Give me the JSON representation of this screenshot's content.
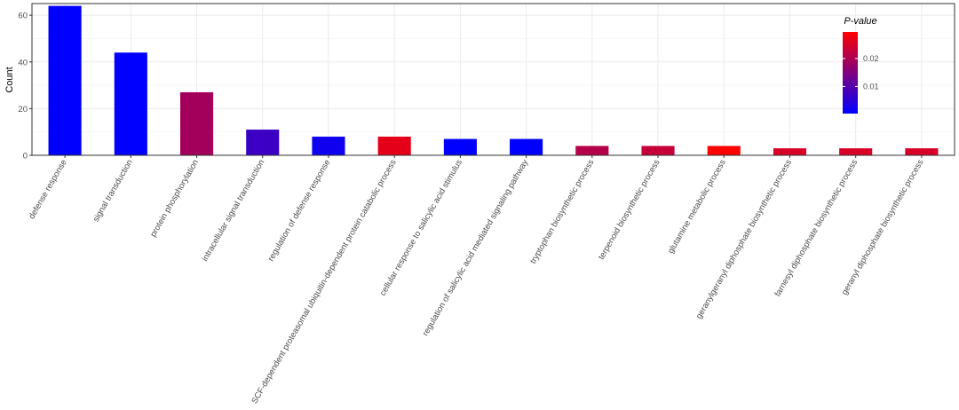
{
  "chart_data": {
    "type": "bar",
    "title": "",
    "xlabel": "",
    "ylabel": "Count",
    "ylim": [
      0,
      65
    ],
    "yticks": [
      0,
      20,
      40,
      60
    ],
    "grid": true,
    "categories": [
      "defense response",
      "signal transduction",
      "protein phosphorylation",
      "intracellular signal transduction",
      "regulation of defense response",
      "SCF-dependent proteasomal ubiquitin-dependent protein catabolic process",
      "cellular response to salicylic acid stimulus",
      "regulation of salicylic acid mediated signaling pathway",
      "tryptophan biosynthetic process",
      "terpenoid biosynthetic process",
      "glutamine metabolic process",
      "geranylgeranyl diphosphate biosynthetic process",
      "farnesyl diphosphate biosynthetic process",
      "geranyl diphosphate biosynthetic process"
    ],
    "values": [
      64,
      44,
      27,
      11,
      8,
      8,
      7,
      7,
      4,
      4,
      4,
      3,
      3,
      3
    ],
    "p_values": [
      0.0003,
      0.0003,
      0.019,
      0.007,
      0.002,
      0.0265,
      0.0003,
      0.0003,
      0.021,
      0.023,
      0.0295,
      0.025,
      0.025,
      0.025
    ],
    "color_scale": {
      "title": "P-value",
      "low_color": "#0000ff",
      "high_color": "#ff0000",
      "range": [
        0.0003,
        0.0295
      ],
      "ticks": [
        "0.01",
        "0.02"
      ],
      "tick_values": [
        0.01,
        0.02
      ],
      "placement": "top-right inside"
    }
  }
}
